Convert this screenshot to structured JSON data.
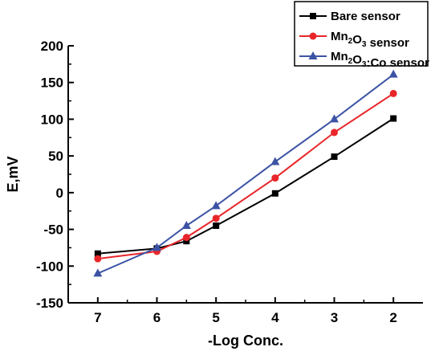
{
  "chart_data": {
    "type": "line",
    "xlabel": "-Log Conc.",
    "ylabel": "E,mV",
    "x_reversed": true,
    "xlim": [
      7.5,
      1.5
    ],
    "ylim": [
      -150,
      200
    ],
    "x_ticks": [
      7,
      6,
      5,
      4,
      3,
      2
    ],
    "y_ticks": [
      -150,
      -100,
      -50,
      0,
      50,
      100,
      150,
      200
    ],
    "grid": false,
    "legend_position": "top-right",
    "series": [
      {
        "name": "Bare sensor",
        "name_parts": [
          {
            "t": "Bare sensor",
            "sub": false
          }
        ],
        "color": "#000000",
        "marker": "square",
        "x": [
          7,
          6,
          5.5,
          5,
          4,
          3,
          2
        ],
        "y": [
          -83,
          -76,
          -66,
          -45,
          -1,
          49,
          101
        ]
      },
      {
        "name": "Mn2O3 sensor",
        "name_parts": [
          {
            "t": "Mn",
            "sub": false
          },
          {
            "t": "2",
            "sub": true
          },
          {
            "t": "O",
            "sub": false
          },
          {
            "t": "3",
            "sub": true
          },
          {
            "t": " sensor",
            "sub": false
          }
        ],
        "color": "#e8262a",
        "marker": "circle",
        "x": [
          7,
          6,
          5.5,
          5,
          4,
          3,
          2
        ],
        "y": [
          -90,
          -80,
          -61,
          -35,
          20,
          82,
          135
        ]
      },
      {
        "name": "Mn2O3:Co sensor",
        "name_parts": [
          {
            "t": "Mn",
            "sub": false
          },
          {
            "t": "2",
            "sub": true
          },
          {
            "t": "O",
            "sub": false
          },
          {
            "t": "3",
            "sub": true
          },
          {
            "t": ":Co sensor",
            "sub": false
          }
        ],
        "color": "#3c53a4",
        "marker": "triangle",
        "x": [
          7,
          6,
          5.5,
          5,
          4,
          3,
          2
        ],
        "y": [
          -110,
          -75,
          -45,
          -18,
          42,
          100,
          161
        ]
      }
    ]
  }
}
